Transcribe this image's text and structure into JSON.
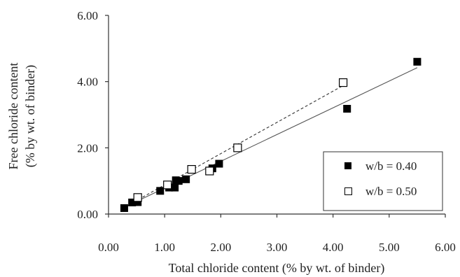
{
  "chart_data": {
    "type": "scatter",
    "xlabel": "Total chloride content (% by wt. of binder)",
    "ylabel_lines": [
      "Free chloride  content",
      "(% by wt. of binder)"
    ],
    "xlim": [
      0,
      6
    ],
    "ylim": [
      0,
      6
    ],
    "x_ticks": [
      "0.00",
      "1.00",
      "2.00",
      "3.00",
      "4.00",
      "5.00",
      "6.00"
    ],
    "y_ticks": [
      "0.00",
      "2.00",
      "4.00",
      "6.00"
    ],
    "x_tick_values": [
      0,
      1,
      2,
      3,
      4,
      5,
      6
    ],
    "y_tick_values": [
      0,
      2,
      4,
      6
    ],
    "grid": false,
    "legend_position": "bottom-right",
    "series": [
      {
        "name": "w/b = 0.40",
        "marker": "filled-square",
        "color": "#000000",
        "points": [
          [
            0.28,
            0.18
          ],
          [
            0.42,
            0.35
          ],
          [
            0.52,
            0.36
          ],
          [
            0.92,
            0.7
          ],
          [
            1.08,
            0.8
          ],
          [
            1.18,
            0.8
          ],
          [
            1.2,
            1.02
          ],
          [
            1.25,
            1.0
          ],
          [
            1.38,
            1.05
          ],
          [
            1.85,
            1.38
          ],
          [
            1.97,
            1.52
          ],
          [
            4.25,
            3.18
          ],
          [
            5.5,
            4.6
          ]
        ],
        "trendline": {
          "style": "solid",
          "x": [
            0.3,
            5.5
          ],
          "y": [
            0.22,
            4.42
          ]
        }
      },
      {
        "name": "w/b = 0.50",
        "marker": "open-square",
        "color": "#000000",
        "points": [
          [
            0.52,
            0.5
          ],
          [
            1.05,
            0.88
          ],
          [
            1.48,
            1.35
          ],
          [
            1.8,
            1.3
          ],
          [
            2.3,
            2.0
          ],
          [
            4.18,
            3.97
          ]
        ],
        "trendline": {
          "style": "dashed",
          "x": [
            0.3,
            4.2
          ],
          "y": [
            0.22,
            3.9
          ]
        }
      }
    ]
  }
}
